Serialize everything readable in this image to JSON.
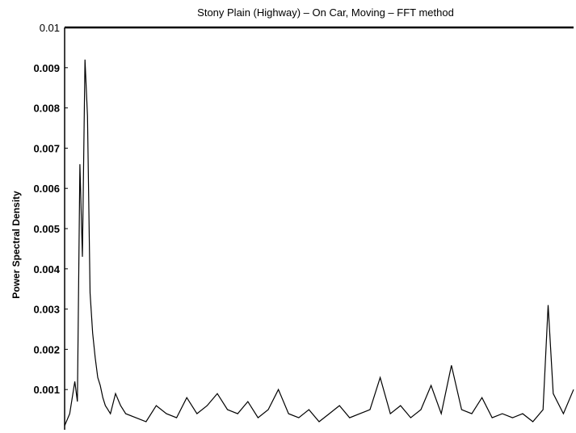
{
  "chart_data": {
    "type": "line",
    "title": "Stony  Plain (Highway)    – On   Car, Moving    – FFT   method",
    "xlabel": "",
    "ylabel": "Power Spectral Density",
    "ylim": [
      0,
      0.01
    ],
    "xlim": [
      0,
      1
    ],
    "yticks": [
      {
        "value": 0.001,
        "label": "0.001"
      },
      {
        "value": 0.002,
        "label": "0.002"
      },
      {
        "value": 0.003,
        "label": "0.003"
      },
      {
        "value": 0.004,
        "label": "0.004"
      },
      {
        "value": 0.005,
        "label": "0.005"
      },
      {
        "value": 0.006,
        "label": "0.006"
      },
      {
        "value": 0.007,
        "label": "0.007"
      },
      {
        "value": 0.008,
        "label": "0.008"
      },
      {
        "value": 0.009,
        "label": "0.009"
      },
      {
        "value": 0.01,
        "label": "0.01"
      }
    ],
    "grid": false,
    "line_color": "#000000",
    "series": [
      {
        "x": [
          0.0,
          0.01,
          0.02,
          0.025,
          0.03,
          0.035,
          0.04,
          0.045,
          0.05,
          0.055,
          0.06,
          0.065,
          0.07,
          0.075,
          0.08,
          0.085,
          0.09,
          0.1,
          0.11,
          0.12,
          0.14,
          0.16,
          0.18,
          0.2,
          0.22,
          0.24,
          0.26,
          0.28,
          0.3,
          0.32,
          0.34,
          0.36,
          0.38,
          0.4,
          0.42,
          0.44,
          0.46,
          0.48,
          0.5,
          0.52,
          0.54,
          0.56,
          0.58,
          0.6,
          0.62,
          0.64,
          0.66,
          0.68,
          0.7,
          0.72,
          0.74,
          0.76,
          0.78,
          0.8,
          0.82,
          0.84,
          0.86,
          0.88,
          0.9,
          0.92,
          0.94,
          0.95,
          0.96,
          0.98,
          1.0
        ],
        "y": [
          0.0001,
          0.0004,
          0.0012,
          0.0007,
          0.0066,
          0.0043,
          0.0092,
          0.0078,
          0.0034,
          0.0024,
          0.0018,
          0.0013,
          0.0011,
          0.0008,
          0.0006,
          0.0005,
          0.0004,
          0.0009,
          0.0006,
          0.0004,
          0.0003,
          0.0002,
          0.0006,
          0.0004,
          0.0003,
          0.0008,
          0.0004,
          0.0006,
          0.0009,
          0.0005,
          0.0004,
          0.0007,
          0.0003,
          0.0005,
          0.001,
          0.0004,
          0.0003,
          0.0005,
          0.0002,
          0.0004,
          0.0006,
          0.0003,
          0.0004,
          0.0005,
          0.0013,
          0.0004,
          0.0006,
          0.0003,
          0.0005,
          0.0011,
          0.0004,
          0.0016,
          0.0005,
          0.0004,
          0.0008,
          0.0003,
          0.0004,
          0.0003,
          0.0004,
          0.0002,
          0.0005,
          0.0031,
          0.0009,
          0.0004,
          0.001
        ]
      }
    ]
  }
}
